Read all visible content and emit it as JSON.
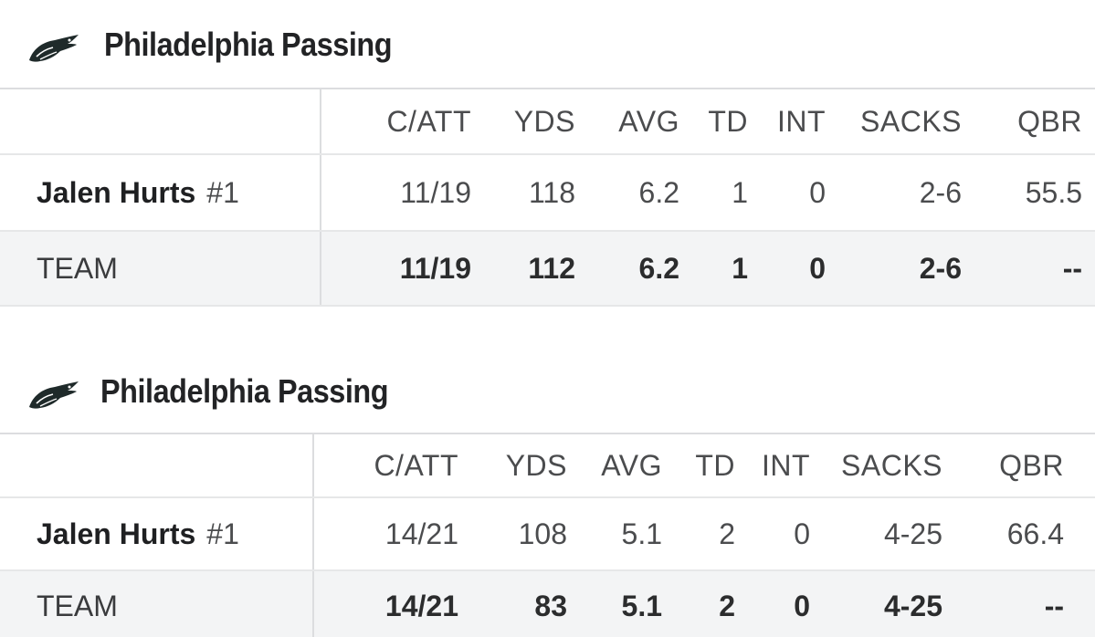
{
  "panels": [
    {
      "title": "Philadelphia Passing",
      "logo_icon": "eagles-logo-icon",
      "columns": [
        "C/ATT",
        "YDS",
        "AVG",
        "TD",
        "INT",
        "SACKS",
        "QBR"
      ],
      "player": {
        "name": "Jalen Hurts",
        "jersey": "#1",
        "stats": [
          "11/19",
          "118",
          "6.2",
          "1",
          "0",
          "2-6",
          "55.5"
        ]
      },
      "team": {
        "label": "TEAM",
        "stats": [
          "11/19",
          "112",
          "6.2",
          "1",
          "0",
          "2-6",
          "--"
        ]
      }
    },
    {
      "title": "Philadelphia Passing",
      "logo_icon": "eagles-logo-icon",
      "columns": [
        "C/ATT",
        "YDS",
        "AVG",
        "TD",
        "INT",
        "SACKS",
        "QBR"
      ],
      "player": {
        "name": "Jalen Hurts",
        "jersey": "#1",
        "stats": [
          "14/21",
          "108",
          "5.1",
          "2",
          "0",
          "4-25",
          "66.4"
        ]
      },
      "team": {
        "label": "TEAM",
        "stats": [
          "14/21",
          "83",
          "5.1",
          "2",
          "0",
          "4-25",
          "--"
        ]
      }
    }
  ],
  "colors": {
    "logo_dark": "#1f2a2a",
    "logo_light": "#ffffff",
    "team_row_bg": "#f3f4f5",
    "divider": "#dcdddf"
  }
}
